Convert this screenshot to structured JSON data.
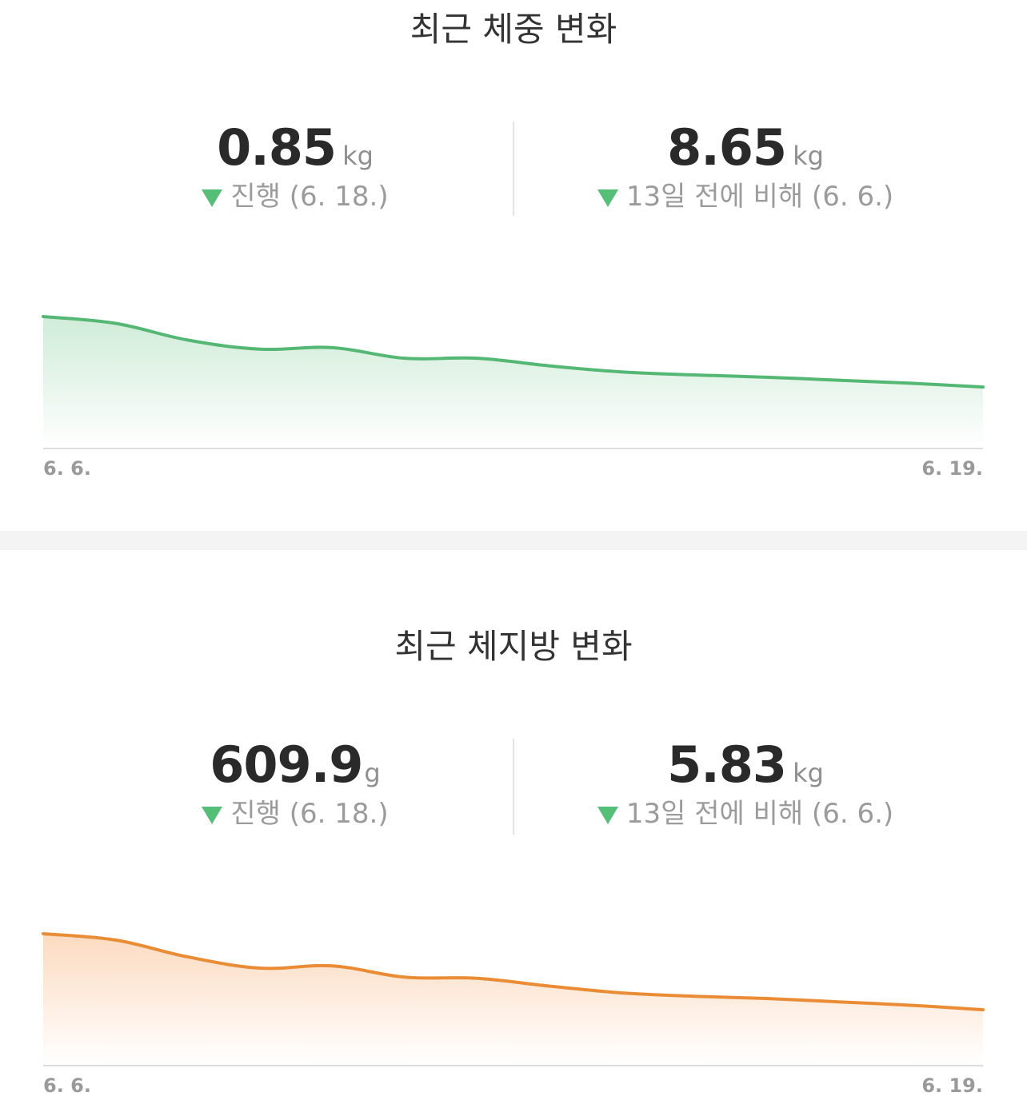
{
  "weight": {
    "title": "최근 체중 변화",
    "left": {
      "value": "0.85",
      "unit": "kg",
      "sub": "진행 (6. 18.)"
    },
    "right": {
      "value": "8.65",
      "unit": "kg",
      "sub": "13일 전에 비해 (6. 6.)"
    },
    "color": "#55b774",
    "fill": "#dff2e5"
  },
  "fat": {
    "title": "최근 체지방 변화",
    "left": {
      "value": "609.9",
      "unit": "g",
      "sub": "진행 (6. 18.)"
    },
    "right": {
      "value": "5.83",
      "unit": "kg",
      "sub": "13일 전에 비해 (6. 6.)"
    },
    "color": "#ea8c35",
    "fill": "#fde6d3"
  },
  "indicator_icon": "down-triangle-icon",
  "indicator_color": "#55be77",
  "chart_data": [
    {
      "type": "area",
      "x": [
        "6. 6.",
        "6. 7.",
        "6. 8.",
        "6. 9.",
        "6. 10.",
        "6. 11.",
        "6. 12.",
        "6. 13.",
        "6. 14.",
        "6. 15.",
        "6. 16.",
        "6. 17.",
        "6. 18.",
        "6. 19."
      ],
      "xticks": [
        "6. 6.",
        "6. 19."
      ],
      "series": [
        {
          "values": [
            8.65,
            8.2,
            7.1,
            6.5,
            6.6,
            5.9,
            5.9,
            5.4,
            5.0,
            4.8,
            4.65,
            4.45,
            4.25,
            4.0
          ]
        }
      ],
      "grid": false,
      "legend": "none"
    },
    {
      "type": "area",
      "x": [
        "6. 6.",
        "6. 7.",
        "6. 8.",
        "6. 9.",
        "6. 10.",
        "6. 11.",
        "6. 12.",
        "6. 13.",
        "6. 14.",
        "6. 15.",
        "6. 16.",
        "6. 17.",
        "6. 18.",
        "6. 19."
      ],
      "xticks": [
        "6. 6.",
        "6. 19."
      ],
      "series": [
        {
          "values": [
            5.83,
            5.55,
            4.8,
            4.3,
            4.4,
            3.9,
            3.85,
            3.5,
            3.2,
            3.05,
            2.95,
            2.8,
            2.65,
            2.45
          ]
        }
      ],
      "grid": false,
      "legend": "none"
    }
  ]
}
